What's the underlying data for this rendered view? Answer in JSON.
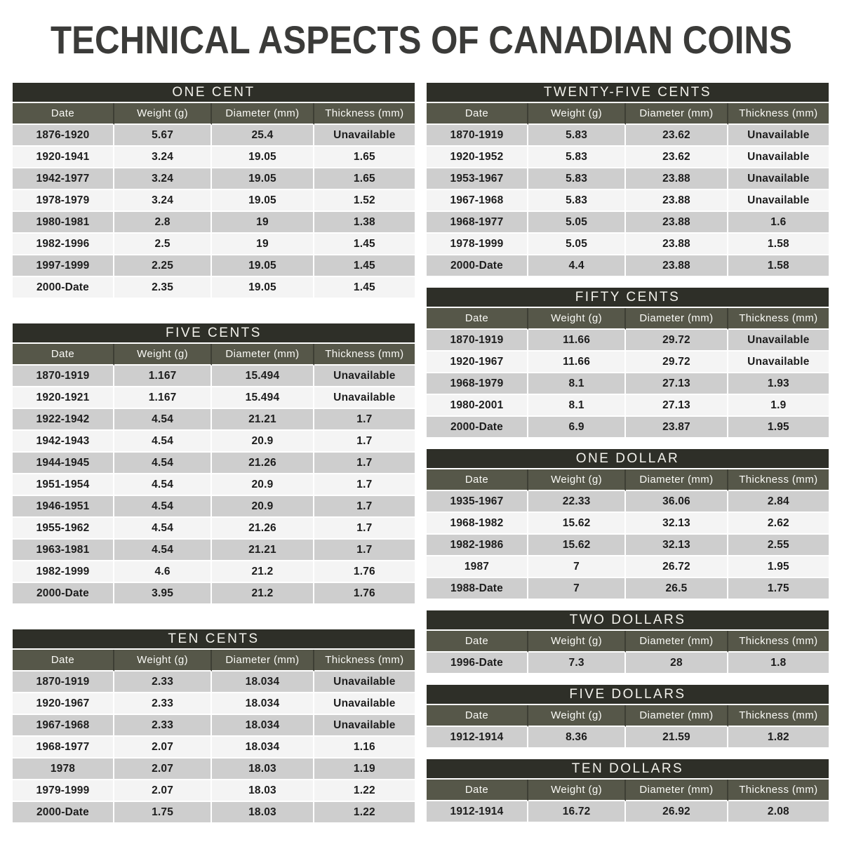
{
  "page_title": "TECHNICAL ASPECTS OF CANADIAN COINS",
  "colors": {
    "title_text": "#3b3b39",
    "table_title_bg": "#2e2f28",
    "header_bg": "#565749",
    "header_sep": "#3e3f35",
    "row_gray": "#cecece",
    "row_light": "#f4f4f4"
  },
  "column_headers": [
    "Date",
    "Weight (g)",
    "Diameter (mm)",
    "Thickness (mm)"
  ],
  "tables": [
    {
      "id": "one-cent",
      "title": "ONE CENT",
      "column": "left",
      "rows": [
        [
          "1876-1920",
          "5.67",
          "25.4",
          "Unavailable"
        ],
        [
          "1920-1941",
          "3.24",
          "19.05",
          "1.65"
        ],
        [
          "1942-1977",
          "3.24",
          "19.05",
          "1.65"
        ],
        [
          "1978-1979",
          "3.24",
          "19.05",
          "1.52"
        ],
        [
          "1980-1981",
          "2.8",
          "19",
          "1.38"
        ],
        [
          "1982-1996",
          "2.5",
          "19",
          "1.45"
        ],
        [
          "1997-1999",
          "2.25",
          "19.05",
          "1.45"
        ],
        [
          "2000-Date",
          "2.35",
          "19.05",
          "1.45"
        ]
      ]
    },
    {
      "id": "five-cents",
      "title": "FIVE CENTS",
      "column": "left",
      "rows": [
        [
          "1870-1919",
          "1.167",
          "15.494",
          "Unavailable"
        ],
        [
          "1920-1921",
          "1.167",
          "15.494",
          "Unavailable"
        ],
        [
          "1922-1942",
          "4.54",
          "21.21",
          "1.7"
        ],
        [
          "1942-1943",
          "4.54",
          "20.9",
          "1.7"
        ],
        [
          "1944-1945",
          "4.54",
          "21.26",
          "1.7"
        ],
        [
          "1951-1954",
          "4.54",
          "20.9",
          "1.7"
        ],
        [
          "1946-1951",
          "4.54",
          "20.9",
          "1.7"
        ],
        [
          "1955-1962",
          "4.54",
          "21.26",
          "1.7"
        ],
        [
          "1963-1981",
          "4.54",
          "21.21",
          "1.7"
        ],
        [
          "1982-1999",
          "4.6",
          "21.2",
          "1.76"
        ],
        [
          "2000-Date",
          "3.95",
          "21.2",
          "1.76"
        ]
      ]
    },
    {
      "id": "ten-cents",
      "title": "TEN CENTS",
      "column": "left",
      "rows": [
        [
          "1870-1919",
          "2.33",
          "18.034",
          "Unavailable"
        ],
        [
          "1920-1967",
          "2.33",
          "18.034",
          "Unavailable"
        ],
        [
          "1967-1968",
          "2.33",
          "18.034",
          "Unavailable"
        ],
        [
          "1968-1977",
          "2.07",
          "18.034",
          "1.16"
        ],
        [
          "1978",
          "2.07",
          "18.03",
          "1.19"
        ],
        [
          "1979-1999",
          "2.07",
          "18.03",
          "1.22"
        ],
        [
          "2000-Date",
          "1.75",
          "18.03",
          "1.22"
        ]
      ]
    },
    {
      "id": "twenty-five-cents",
      "title": "TWENTY-FIVE CENTS",
      "column": "right",
      "rows": [
        [
          "1870-1919",
          "5.83",
          "23.62",
          "Unavailable"
        ],
        [
          "1920-1952",
          "5.83",
          "23.62",
          "Unavailable"
        ],
        [
          "1953-1967",
          "5.83",
          "23.88",
          "Unavailable"
        ],
        [
          "1967-1968",
          "5.83",
          "23.88",
          "Unavailable"
        ],
        [
          "1968-1977",
          "5.05",
          "23.88",
          "1.6"
        ],
        [
          "1978-1999",
          "5.05",
          "23.88",
          "1.58"
        ],
        [
          "2000-Date",
          "4.4",
          "23.88",
          "1.58"
        ]
      ]
    },
    {
      "id": "fifty-cents",
      "title": "FIFTY CENTS",
      "column": "right",
      "rows": [
        [
          "1870-1919",
          "11.66",
          "29.72",
          "Unavailable"
        ],
        [
          "1920-1967",
          "11.66",
          "29.72",
          "Unavailable"
        ],
        [
          "1968-1979",
          "8.1",
          "27.13",
          "1.93"
        ],
        [
          "1980-2001",
          "8.1",
          "27.13",
          "1.9"
        ],
        [
          "2000-Date",
          "6.9",
          "23.87",
          "1.95"
        ]
      ]
    },
    {
      "id": "one-dollar",
      "title": "ONE DOLLAR",
      "column": "right",
      "rows": [
        [
          "1935-1967",
          "22.33",
          "36.06",
          "2.84"
        ],
        [
          "1968-1982",
          "15.62",
          "32.13",
          "2.62"
        ],
        [
          "1982-1986",
          "15.62",
          "32.13",
          "2.55"
        ],
        [
          "1987",
          "7",
          "26.72",
          "1.95"
        ],
        [
          "1988-Date",
          "7",
          "26.5",
          "1.75"
        ]
      ]
    },
    {
      "id": "two-dollars",
      "title": "TWO DOLLARS",
      "column": "right",
      "rows": [
        [
          "1996-Date",
          "7.3",
          "28",
          "1.8"
        ]
      ]
    },
    {
      "id": "five-dollars",
      "title": "FIVE DOLLARS",
      "column": "right",
      "rows": [
        [
          "1912-1914",
          "8.36",
          "21.59",
          "1.82"
        ]
      ]
    },
    {
      "id": "ten-dollars",
      "title": "TEN DOLLARS",
      "column": "right",
      "rows": [
        [
          "1912-1914",
          "16.72",
          "26.92",
          "2.08"
        ]
      ]
    }
  ]
}
